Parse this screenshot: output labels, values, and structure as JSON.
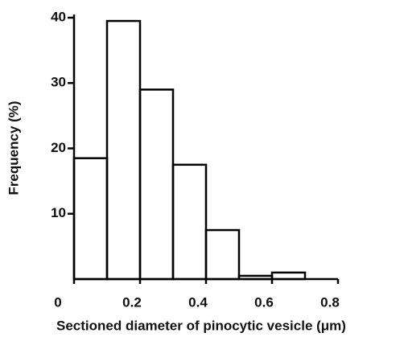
{
  "chart_data": {
    "type": "histogram",
    "xlabel": "Sectioned diameter of pinocytic vesicle (μm)",
    "ylabel": "Frequency (%)",
    "bins": [
      0,
      0.1,
      0.2,
      0.3,
      0.4,
      0.5,
      0.6,
      0.7
    ],
    "values": [
      18.5,
      39.5,
      29,
      17.5,
      7.5,
      0.5,
      1
    ],
    "color": "#000000",
    "xlim": [
      0,
      0.8
    ],
    "xticks": [
      0,
      0.2,
      0.4,
      0.6,
      0.8
    ],
    "ylim": [
      0,
      40
    ],
    "yticks": [
      10,
      20,
      30,
      40
    ],
    "grid": false
  }
}
